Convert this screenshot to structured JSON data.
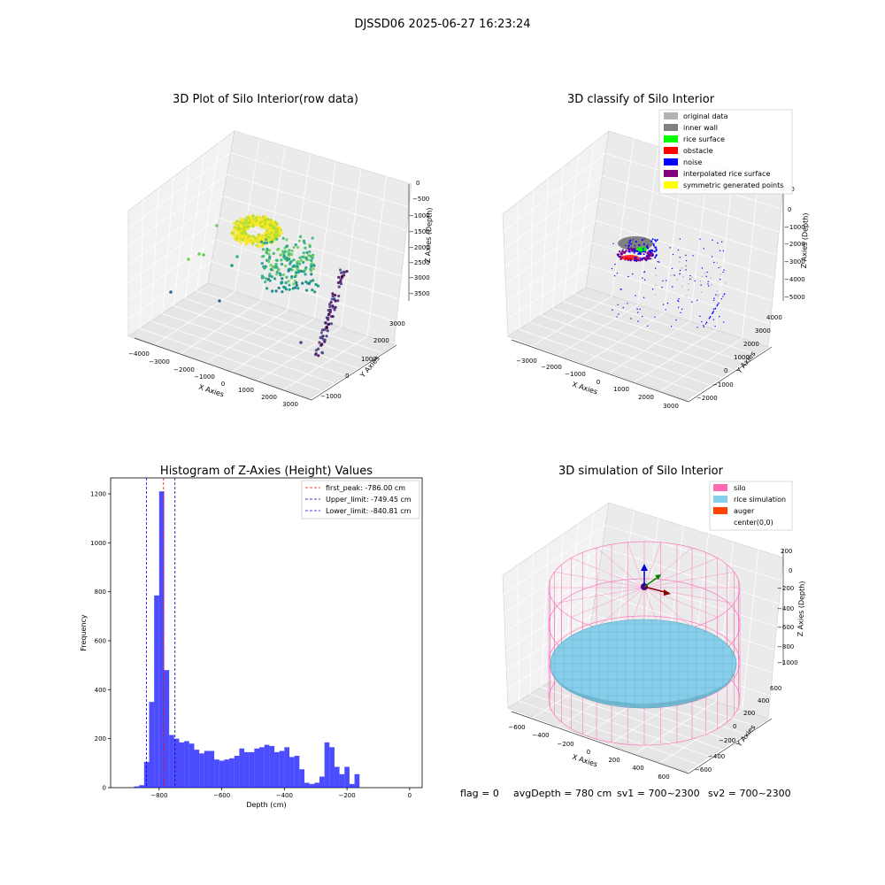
{
  "figure": {
    "suptitle": "DJSSD06 2025-06-27 16:23:24",
    "footer": {
      "flag": "flag = 0",
      "avg_depth": "avgDepth = 780 cm",
      "sv1": "sv1 = 700~2300",
      "sv2": "sv2 = 700~2300"
    }
  },
  "chart_data": [
    {
      "type": "scatter3d",
      "title": "3D Plot of Silo Interior(row data)",
      "xlabel": "X Axies",
      "ylabel": "Y Axies",
      "zlabel": "Z Axies (Depth)",
      "x_ticks": [
        "−4000",
        "−3000",
        "−2000",
        "−1000",
        "0",
        "1000",
        "2000",
        "3000"
      ],
      "y_ticks": [
        "−1000",
        "0",
        "1000",
        "2000",
        "3000"
      ],
      "z_ticks": [
        "0",
        "−500",
        "−1000",
        "−1500",
        "−2000",
        "−2500",
        "−3000",
        "−3500"
      ],
      "colormap": "viridis"
    },
    {
      "type": "scatter3d",
      "title": "3D classify of Silo Interior",
      "xlabel": "X Axies",
      "ylabel": "Y Axies",
      "zlabel": "Z Axies (Depth)",
      "x_ticks": [
        "−3000",
        "−2000",
        "−1000",
        "0",
        "1000",
        "2000",
        "3000"
      ],
      "y_ticks": [
        "−2000",
        "−1000",
        "0",
        "1000",
        "2000",
        "3000",
        "4000"
      ],
      "z_ticks": [
        "1000",
        "0",
        "−1000",
        "−2000",
        "−3000",
        "−4000",
        "−5000"
      ],
      "legend_position": "top-right",
      "legend": [
        {
          "label": "original data",
          "color": "#b3b3b3"
        },
        {
          "label": "inner wall",
          "color": "#808080"
        },
        {
          "label": "rice surface",
          "color": "#00ff00"
        },
        {
          "label": "obstacle",
          "color": "#ff0000"
        },
        {
          "label": "noise",
          "color": "#0000ff"
        },
        {
          "label": "interpolated rice surface",
          "color": "#800080"
        },
        {
          "label": "symmetric generated points",
          "color": "#ffff00"
        }
      ]
    },
    {
      "type": "bar",
      "title": "Histogram of Z-Axies (Height) Values",
      "xlabel": "Depth (cm)",
      "ylabel": "Frequency",
      "xlim": [
        -955,
        40
      ],
      "ylim": [
        0,
        1265
      ],
      "x_ticks": [
        -800,
        -600,
        -400,
        -200,
        0
      ],
      "x_tick_labels": [
        "−800",
        "−600",
        "−400",
        "−200",
        "0"
      ],
      "y_ticks": [
        0,
        200,
        400,
        600,
        800,
        1000,
        1200
      ],
      "y_tick_labels": [
        "0",
        "200",
        "400",
        "600",
        "800",
        "1000",
        "1200"
      ],
      "bar_color": "#0000ff",
      "bin_start": -880,
      "bin_width": 16,
      "values": [
        5,
        10,
        105,
        350,
        785,
        1210,
        480,
        215,
        200,
        185,
        190,
        180,
        155,
        140,
        150,
        150,
        115,
        110,
        115,
        120,
        130,
        160,
        145,
        145,
        160,
        165,
        175,
        170,
        145,
        150,
        165,
        125,
        130,
        75,
        20,
        15,
        20,
        45,
        185,
        165,
        85,
        55,
        85,
        15,
        55
      ],
      "lines": [
        {
          "label": "first_peak: -786.00 cm",
          "x": -786.0,
          "color": "#ff0000"
        },
        {
          "label": "Upper_limit: -749.45 cm",
          "x": -749.45,
          "color": "#00008b"
        },
        {
          "label": "Lower_limit: -840.81 cm",
          "x": -840.81,
          "color": "#0000ff"
        }
      ],
      "legend_position": "top-right"
    },
    {
      "type": "surface3d",
      "title": "3D simulation of Silo Interior",
      "xlabel": "X Axies",
      "ylabel": "Y Axies",
      "zlabel": "Z Axies (Depth)",
      "x_ticks": [
        "−600",
        "−400",
        "−200",
        "0",
        "200",
        "400",
        "600"
      ],
      "y_ticks": [
        "−600",
        "−400",
        "−200",
        "0",
        "200",
        "400",
        "600"
      ],
      "z_ticks": [
        "200",
        "0",
        "−200",
        "−400",
        "−600",
        "−800",
        "−1000"
      ],
      "legend_position": "top-right",
      "legend": [
        {
          "label": "silo",
          "color": "#ff69b4"
        },
        {
          "label": "rice simulation",
          "color": "#87ceeb"
        },
        {
          "label": "auger",
          "color": "#ff4500"
        },
        {
          "label": "center(0,0)",
          "color": "none"
        }
      ]
    }
  ]
}
